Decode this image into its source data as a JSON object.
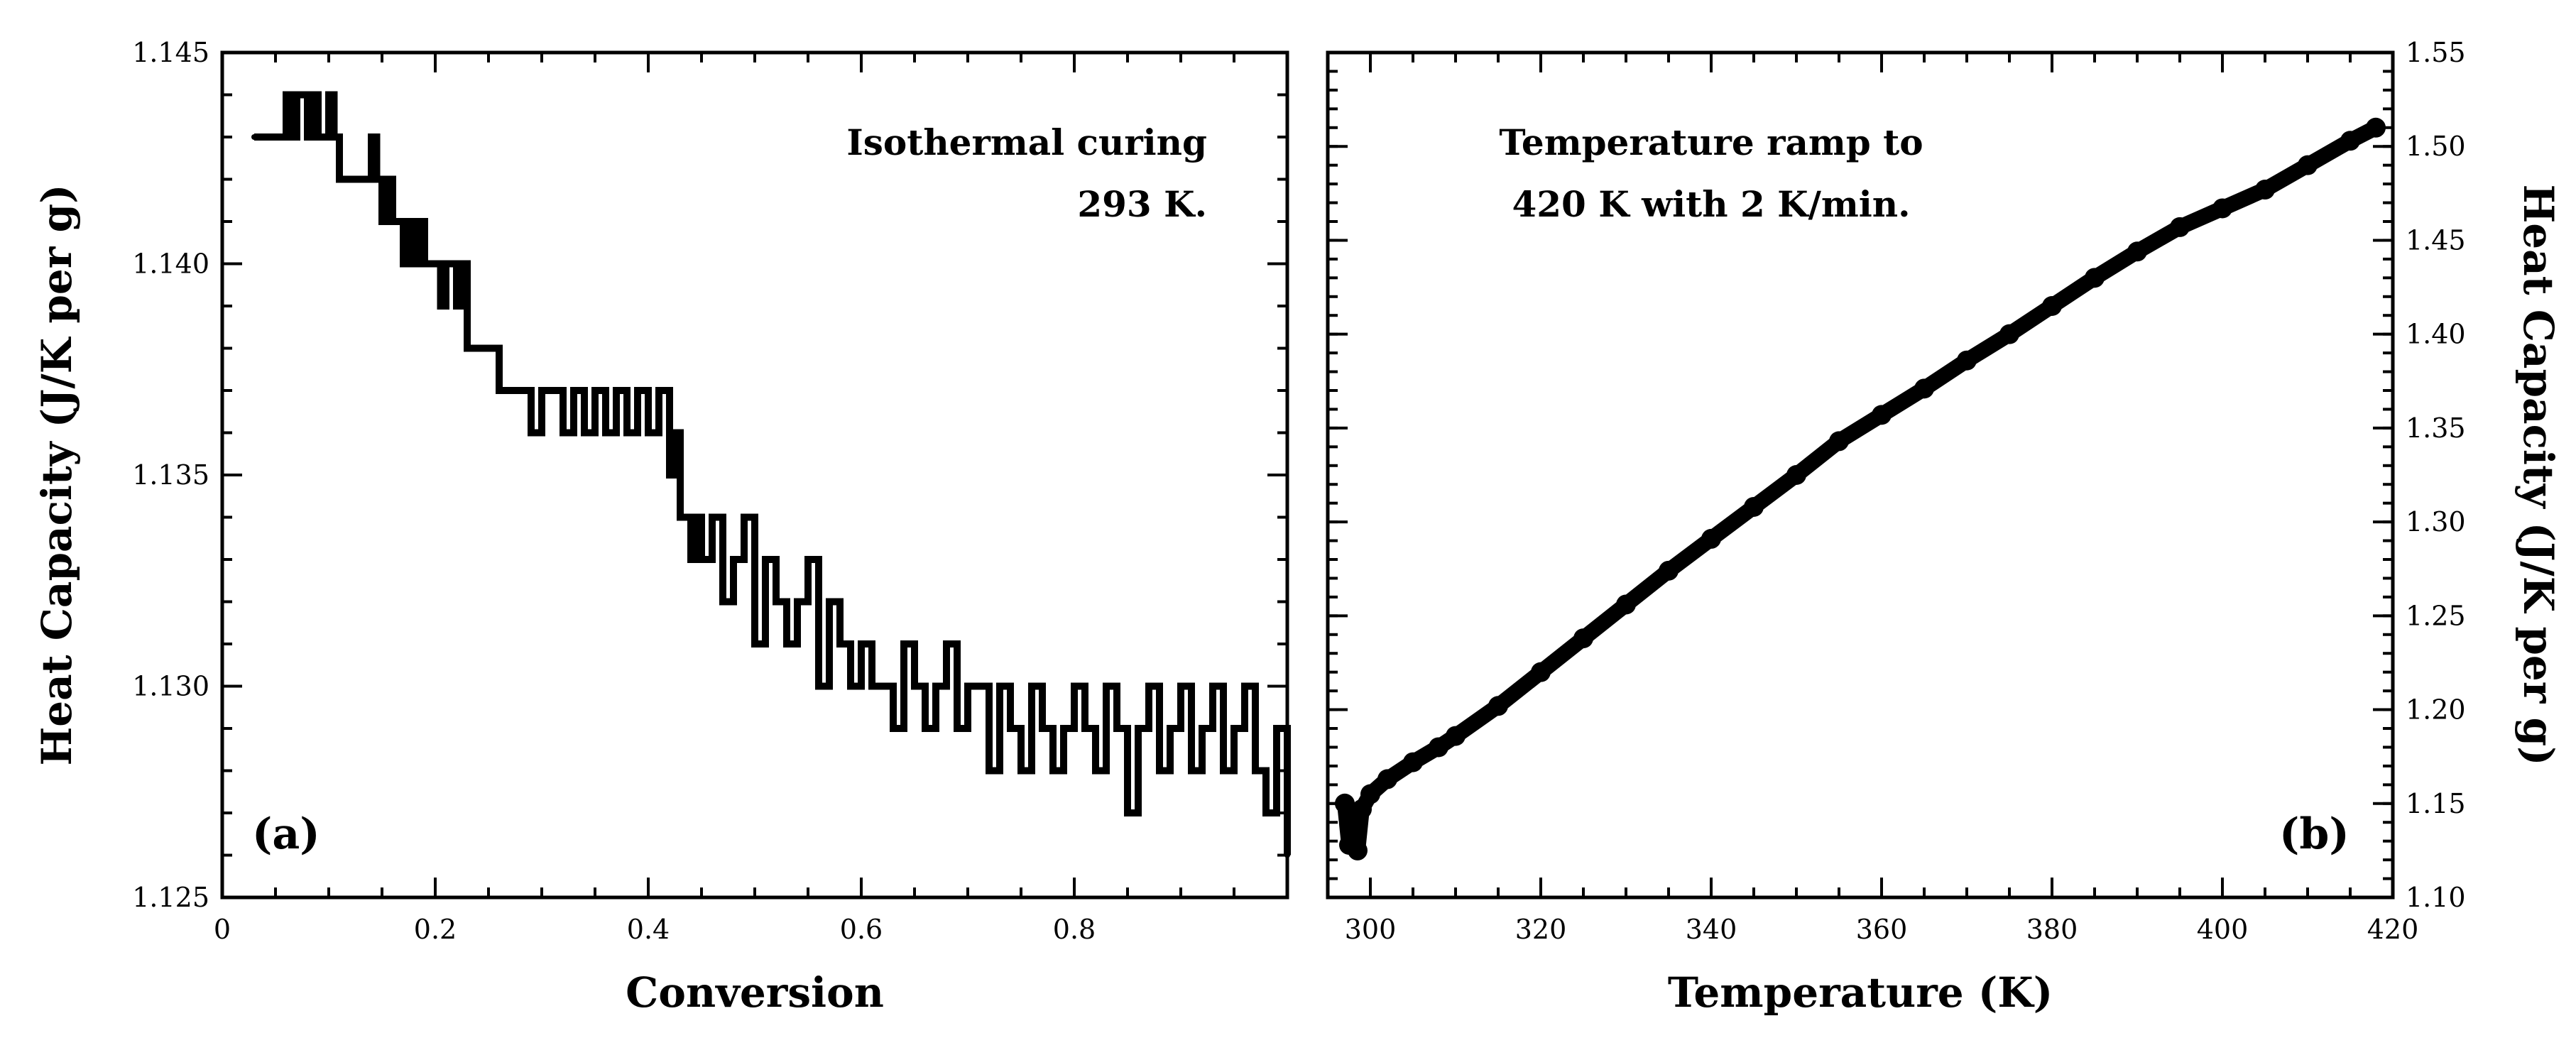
{
  "chart_data": [
    {
      "type": "line",
      "panel_label": "(a)",
      "xlabel": "Conversion",
      "ylabel": "Heat Capacity (J/K per g)",
      "xlim": [
        0,
        1.0
      ],
      "ylim": [
        1.125,
        1.145
      ],
      "xticks": [
        0,
        0.2,
        0.4,
        0.6,
        0.8
      ],
      "xtick_labels": [
        "0",
        "0.2",
        "0.4",
        "0.6",
        "0.8"
      ],
      "yticks": [
        1.125,
        1.13,
        1.135,
        1.14,
        1.145
      ],
      "ytick_labels": [
        "1.125",
        "1.130",
        "1.135",
        "1.140",
        "1.145"
      ],
      "annotation": [
        "Isothermal curing",
        "293 K."
      ],
      "series": [
        {
          "name": "isothermal",
          "style": "step",
          "x": [
            0.03,
            0.06,
            0.065,
            0.07,
            0.08,
            0.085,
            0.09,
            0.1,
            0.105,
            0.11,
            0.12,
            0.14,
            0.145,
            0.15,
            0.155,
            0.16,
            0.17,
            0.175,
            0.18,
            0.185,
            0.19,
            0.2,
            0.205,
            0.21,
            0.22,
            0.225,
            0.23,
            0.24,
            0.25,
            0.26,
            0.27,
            0.28,
            0.29,
            0.3,
            0.31,
            0.32,
            0.33,
            0.34,
            0.35,
            0.36,
            0.37,
            0.38,
            0.39,
            0.4,
            0.41,
            0.42,
            0.425,
            0.43,
            0.44,
            0.445,
            0.45,
            0.46,
            0.47,
            0.48,
            0.49,
            0.5,
            0.51,
            0.52,
            0.53,
            0.54,
            0.55,
            0.56,
            0.57,
            0.58,
            0.59,
            0.6,
            0.61,
            0.62,
            0.63,
            0.64,
            0.65,
            0.66,
            0.67,
            0.68,
            0.69,
            0.7,
            0.71,
            0.72,
            0.73,
            0.74,
            0.75,
            0.76,
            0.77,
            0.78,
            0.79,
            0.8,
            0.81,
            0.82,
            0.83,
            0.84,
            0.85,
            0.86,
            0.87,
            0.88,
            0.89,
            0.9,
            0.91,
            0.92,
            0.93,
            0.94,
            0.95,
            0.96,
            0.97,
            0.98,
            0.99,
            1.0
          ],
          "y": [
            1.143,
            1.144,
            1.143,
            1.144,
            1.143,
            1.144,
            1.143,
            1.144,
            1.143,
            1.142,
            1.142,
            1.143,
            1.142,
            1.141,
            1.142,
            1.141,
            1.14,
            1.141,
            1.14,
            1.141,
            1.14,
            1.14,
            1.139,
            1.14,
            1.139,
            1.14,
            1.138,
            1.138,
            1.138,
            1.137,
            1.137,
            1.137,
            1.136,
            1.137,
            1.137,
            1.136,
            1.137,
            1.136,
            1.137,
            1.136,
            1.137,
            1.136,
            1.137,
            1.136,
            1.137,
            1.135,
            1.136,
            1.134,
            1.133,
            1.134,
            1.133,
            1.134,
            1.132,
            1.133,
            1.134,
            1.131,
            1.133,
            1.132,
            1.131,
            1.132,
            1.133,
            1.13,
            1.132,
            1.131,
            1.13,
            1.131,
            1.13,
            1.13,
            1.129,
            1.131,
            1.13,
            1.129,
            1.13,
            1.131,
            1.129,
            1.13,
            1.13,
            1.128,
            1.13,
            1.129,
            1.128,
            1.13,
            1.129,
            1.128,
            1.129,
            1.13,
            1.129,
            1.128,
            1.13,
            1.129,
            1.127,
            1.129,
            1.13,
            1.128,
            1.129,
            1.13,
            1.128,
            1.129,
            1.13,
            1.128,
            1.129,
            1.13,
            1.128,
            1.127,
            1.129,
            1.126
          ]
        }
      ]
    },
    {
      "type": "scatter",
      "panel_label": "(b)",
      "xlabel": "Temperature (K)",
      "ylabel": "Heat Capacity (J/K per g)",
      "xlim": [
        295,
        420
      ],
      "ylim": [
        1.1,
        1.55
      ],
      "xticks": [
        300,
        320,
        340,
        360,
        380,
        400,
        420
      ],
      "xtick_labels": [
        "300",
        "320",
        "340",
        "360",
        "380",
        "400",
        "420"
      ],
      "yticks": [
        1.1,
        1.15,
        1.2,
        1.25,
        1.3,
        1.35,
        1.4,
        1.45,
        1.5,
        1.55
      ],
      "ytick_labels": [
        "1.10",
        "1.15",
        "1.20",
        "1.25",
        "1.30",
        "1.35",
        "1.40",
        "1.45",
        "1.50",
        "1.55"
      ],
      "annotation": [
        "Temperature ramp to",
        "420 K with 2 K/min."
      ],
      "series": [
        {
          "name": "ramp",
          "x": [
            297,
            297.5,
            298,
            298.5,
            299,
            300,
            302,
            305,
            308,
            310,
            315,
            320,
            325,
            330,
            335,
            340,
            345,
            350,
            355,
            360,
            365,
            370,
            375,
            380,
            385,
            390,
            395,
            400,
            405,
            410,
            415,
            418
          ],
          "y": [
            1.15,
            1.128,
            1.13,
            1.125,
            1.147,
            1.155,
            1.163,
            1.172,
            1.18,
            1.186,
            1.202,
            1.22,
            1.238,
            1.256,
            1.274,
            1.291,
            1.308,
            1.325,
            1.343,
            1.357,
            1.371,
            1.386,
            1.4,
            1.415,
            1.43,
            1.444,
            1.457,
            1.467,
            1.477,
            1.49,
            1.503,
            1.51
          ]
        }
      ]
    }
  ]
}
